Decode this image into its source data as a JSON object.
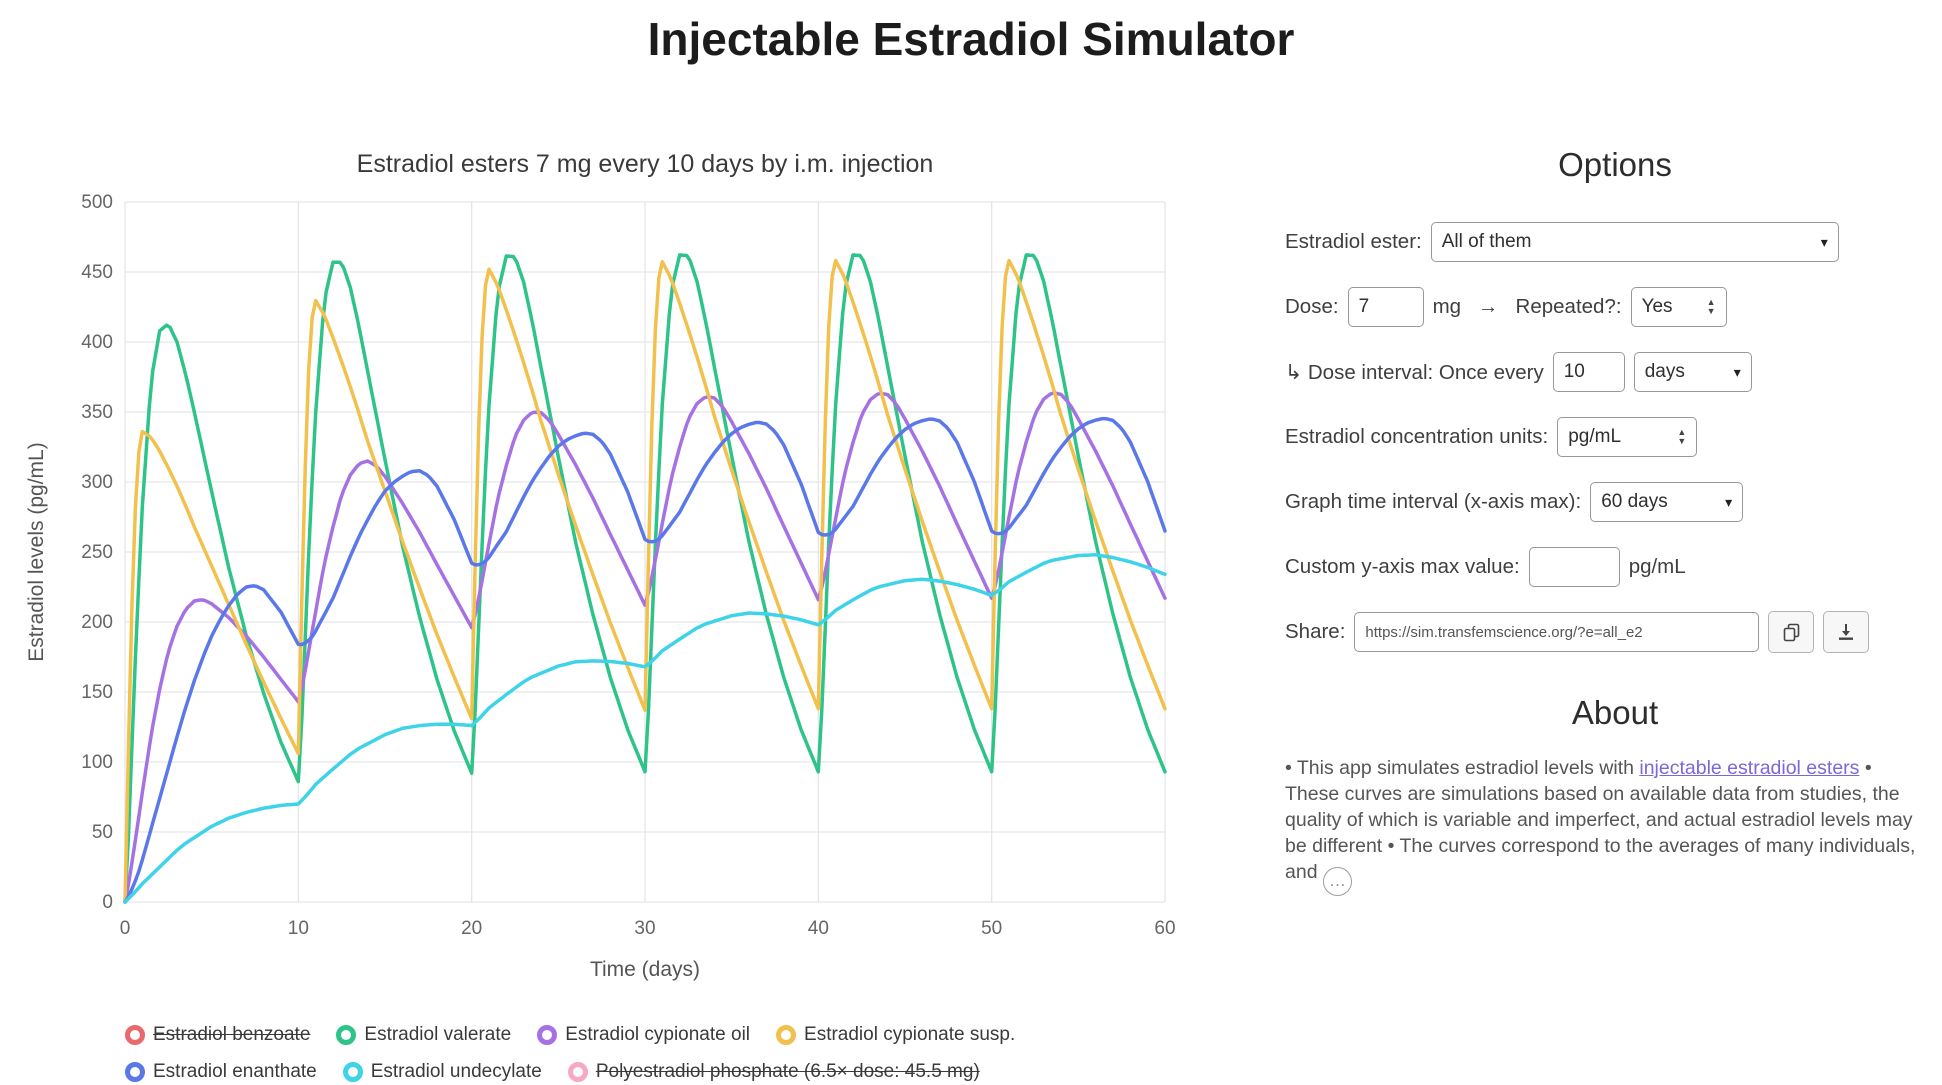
{
  "page": {
    "title": "Injectable Estradiol Simulator"
  },
  "chart_data": {
    "type": "line",
    "title": "Estradiol esters 7 mg every 10 days by i.m. injection",
    "xlabel": "Time (days)",
    "ylabel": "Estradiol levels (pg/mL)",
    "xlim": [
      0,
      60
    ],
    "ylim": [
      0,
      500
    ],
    "x_ticks": [
      0,
      10,
      20,
      30,
      40,
      50,
      60
    ],
    "y_ticks": [
      0,
      50,
      100,
      150,
      200,
      250,
      300,
      350,
      400,
      450,
      500
    ],
    "grid": true,
    "legend_position": "bottom",
    "dose_mg": 7,
    "injection_days": [
      0,
      10,
      20,
      30,
      40,
      50
    ],
    "series": [
      {
        "name": "Estradiol benzoate",
        "color": "#e8696e",
        "hidden": true,
        "legend_row": 0
      },
      {
        "name": "Estradiol valerate",
        "color": "#2ec489",
        "hidden": false,
        "legend_row": 0,
        "single_dose_profile": {
          "t": [
            0,
            0.25,
            0.5,
            0.75,
            1,
            1.5,
            2,
            2.5,
            3,
            3.5,
            4,
            5,
            6,
            7,
            8,
            9,
            10,
            12,
            14,
            16,
            18,
            20,
            25,
            30,
            40,
            60
          ],
          "v": [
            0,
            60,
            145,
            218,
            282,
            372,
            408,
            413,
            400,
            377,
            350,
            293,
            238,
            190,
            149,
            114,
            86,
            49,
            29,
            17,
            10,
            6,
            2,
            1,
            0,
            0
          ]
        }
      },
      {
        "name": "Estradiol cypionate oil",
        "color": "#a672e3",
        "hidden": false,
        "legend_row": 0,
        "single_dose_profile": {
          "t": [
            0,
            0.25,
            0.5,
            0.75,
            1,
            1.5,
            2,
            2.5,
            3,
            3.5,
            4,
            4.5,
            5,
            6,
            7,
            8,
            9,
            10,
            12,
            14,
            16,
            18,
            20,
            25,
            30,
            35,
            40,
            45,
            50,
            55,
            60
          ],
          "v": [
            0,
            16,
            36,
            57,
            78,
            119,
            152,
            179,
            197,
            209,
            215,
            216,
            213,
            203,
            190,
            175,
            159,
            143,
            116,
            100,
            82,
            66,
            53,
            30,
            16,
            9,
            4,
            2,
            1,
            0,
            0
          ]
        }
      },
      {
        "name": "Estradiol cypionate susp.",
        "color": "#f2c14d",
        "hidden": false,
        "legend_row": 0,
        "single_dose_profile": {
          "t": [
            0,
            0.25,
            0.5,
            0.75,
            1,
            1.5,
            2,
            2.5,
            3,
            3.5,
            4,
            5,
            6,
            7,
            8,
            9,
            10,
            12,
            14,
            16,
            18,
            20,
            25,
            30,
            35,
            40,
            50,
            60
          ],
          "v": [
            0,
            140,
            258,
            318,
            336,
            332,
            322,
            310,
            297,
            283,
            268,
            240,
            212,
            184,
            157,
            131,
            106,
            81,
            61,
            46,
            34,
            25,
            12,
            6,
            3,
            1,
            0,
            0
          ]
        }
      },
      {
        "name": "Estradiol enanthate",
        "color": "#5a78ea",
        "hidden": false,
        "legend_row": 1,
        "single_dose_profile": {
          "t": [
            0,
            0.25,
            0.5,
            0.75,
            1,
            1.5,
            2,
            2.5,
            3,
            3.5,
            4,
            4.5,
            5,
            5.5,
            6,
            6.5,
            7,
            7.5,
            8,
            9,
            10,
            12,
            14,
            16,
            18,
            20,
            25,
            30,
            35,
            40,
            45,
            50,
            60
          ],
          "v": [
            0,
            5,
            12,
            20,
            30,
            52,
            74,
            96,
            118,
            139,
            158,
            175,
            190,
            202,
            212,
            220,
            225,
            226,
            223,
            207,
            184,
            143,
            115,
            92,
            74,
            58,
            32,
            17,
            9,
            5,
            3,
            1,
            0
          ]
        }
      },
      {
        "name": "Estradiol undecylate",
        "color": "#3ed3e8",
        "hidden": false,
        "legend_row": 1,
        "single_dose_profile": {
          "t": [
            0,
            0.5,
            1,
            1.5,
            2,
            2.5,
            3,
            3.5,
            4,
            5,
            6,
            7,
            8,
            9,
            10,
            11,
            12,
            14,
            16,
            18,
            20,
            25,
            30,
            35,
            40,
            45,
            50,
            55,
            60
          ],
          "v": [
            0,
            6,
            13,
            19,
            25,
            31,
            37,
            42,
            46,
            54,
            60,
            64,
            67,
            69,
            70,
            71,
            70,
            67,
            64,
            60,
            56,
            49,
            42,
            36,
            30,
            25,
            21,
            18,
            15
          ]
        }
      },
      {
        "name": "Polyestradiol phosphate (6.5× dose: 45.5 mg)",
        "color": "#f7a8c4",
        "hidden": true,
        "legend_row": 1
      }
    ]
  },
  "options": {
    "heading": "Options",
    "ester_label": "Estradiol ester:",
    "ester_value": "All of them",
    "dose_label": "Dose:",
    "dose_value": "7",
    "dose_unit": "mg",
    "arrow": "→",
    "repeated_label": "Repeated?:",
    "repeated_value": "Yes",
    "interval_label": "↳ Dose interval: Once every",
    "interval_value": "10",
    "interval_unit_value": "days",
    "units_label": "Estradiol concentration units:",
    "units_value": "pg/mL",
    "xmax_label": "Graph time interval (x-axis max):",
    "xmax_value": "60 days",
    "ymax_label": "Custom y-axis max value:",
    "ymax_value": "",
    "ymax_unit": "pg/mL",
    "share_label": "Share:",
    "share_url": "https://sim.transfemscience.org/?e=all_e2"
  },
  "about": {
    "heading": "About",
    "text_before": "• This app simulates estradiol levels with ",
    "link_text": "injectable estradiol esters",
    "text_after": " • These curves are simulations based on available data from studies, the quality of which is variable and imperfect, and actual estradiol levels may be different • The curves correspond to the averages of many individuals, and ",
    "more_button": "…"
  }
}
